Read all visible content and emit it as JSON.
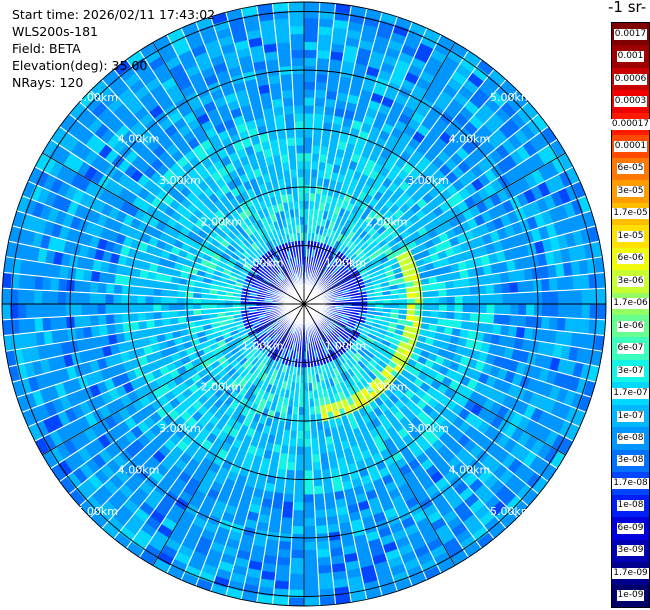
{
  "header": {
    "start_time": "Start time: 2026/02/11 17:43:02",
    "instrument": "WLS200s-181",
    "field": "Field: BETA",
    "elevation": "Elevation(deg): 35.00",
    "nrays": "NRays: 120"
  },
  "colorbar": {
    "title": "-1 sr-",
    "levels": [
      {
        "label": "0.0017",
        "color": "#7e0000"
      },
      {
        "label": "0.001",
        "color": "#9c0000"
      },
      {
        "label": "0.0006",
        "color": "#c80000"
      },
      {
        "label": "0.0003",
        "color": "#f20000"
      },
      {
        "label": "0.00017",
        "color": "#ff1a00"
      },
      {
        "label": "0.0001",
        "color": "#ff4a00"
      },
      {
        "label": "6e-05",
        "color": "#ff7800"
      },
      {
        "label": "3e-05",
        "color": "#ff9c00"
      },
      {
        "label": "1.7e-05",
        "color": "#ffbe00"
      },
      {
        "label": "1e-05",
        "color": "#ffe000"
      },
      {
        "label": "6e-06",
        "color": "#f2fa0c"
      },
      {
        "label": "3e-06",
        "color": "#c8ff30"
      },
      {
        "label": "1.7e-06",
        "color": "#94ff62"
      },
      {
        "label": "1e-06",
        "color": "#66ff90"
      },
      {
        "label": "6e-07",
        "color": "#3cffbe"
      },
      {
        "label": "3e-07",
        "color": "#14f4e6"
      },
      {
        "label": "1.7e-07",
        "color": "#00d8ff"
      },
      {
        "label": "1e-07",
        "color": "#00b8ff"
      },
      {
        "label": "6e-08",
        "color": "#0096ff"
      },
      {
        "label": "3e-08",
        "color": "#0072ff"
      },
      {
        "label": "1.7e-08",
        "color": "#0046ff"
      },
      {
        "label": "1e-08",
        "color": "#001ef6"
      },
      {
        "label": "6e-09",
        "color": "#0000dc"
      },
      {
        "label": "3e-09",
        "color": "#0000b4"
      },
      {
        "label": "1.7e-09",
        "color": "#00008c"
      },
      {
        "label": "1e-09",
        "color": "#00006a"
      }
    ]
  },
  "range_labels": [
    "1.00km",
    "2.00km",
    "3.00km",
    "4.00km",
    "5.00km"
  ],
  "rays": 120
}
